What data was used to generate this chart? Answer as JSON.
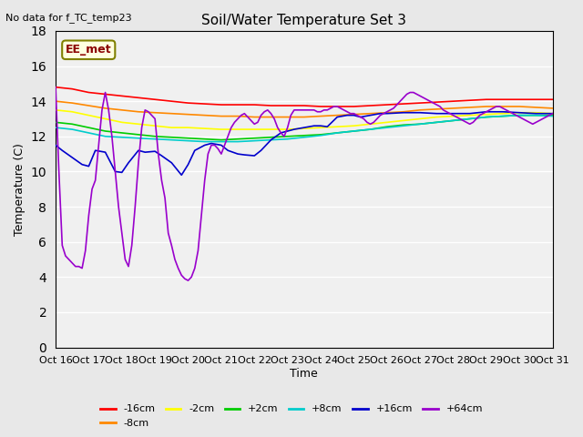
{
  "title": "Soil/Water Temperature Set 3",
  "no_data_label": "No data for f_TC_temp23",
  "xlabel": "Time",
  "ylabel": "Temperature (C)",
  "ylim": [
    0,
    18
  ],
  "yticks": [
    0,
    2,
    4,
    6,
    8,
    10,
    12,
    14,
    16,
    18
  ],
  "x_labels": [
    "Oct 16",
    "Oct 17",
    "Oct 18",
    "Oct 19",
    "Oct 20",
    "Oct 21",
    "Oct 22",
    "Oct 23",
    "Oct 24",
    "Oct 25",
    "Oct 26",
    "Oct 27",
    "Oct 28",
    "Oct 29",
    "Oct 30",
    "Oct 31"
  ],
  "x_ticks": [
    0,
    1,
    2,
    3,
    4,
    5,
    6,
    7,
    8,
    9,
    10,
    11,
    12,
    13,
    14,
    15
  ],
  "legend_label": "EE_met",
  "series": {
    "-16cm": {
      "color": "#ff0000",
      "data_x": [
        0,
        0.5,
        1,
        1.5,
        2,
        2.5,
        3,
        3.5,
        4,
        4.5,
        5,
        5.5,
        6,
        6.5,
        7,
        7.5,
        8,
        8.5,
        9,
        9.5,
        10,
        10.5,
        11,
        11.5,
        12,
        12.5,
        13,
        13.5,
        14,
        14.5,
        15
      ],
      "data_y": [
        14.8,
        14.7,
        14.5,
        14.4,
        14.3,
        14.2,
        14.1,
        14.0,
        13.9,
        13.85,
        13.8,
        13.8,
        13.8,
        13.75,
        13.75,
        13.75,
        13.7,
        13.7,
        13.7,
        13.75,
        13.8,
        13.85,
        13.9,
        13.95,
        14.0,
        14.05,
        14.1,
        14.1,
        14.1,
        14.1,
        14.1
      ]
    },
    "-8cm": {
      "color": "#ff8800",
      "data_x": [
        0,
        0.5,
        1,
        1.5,
        2,
        2.5,
        3,
        3.5,
        4,
        4.5,
        5,
        5.5,
        6,
        6.5,
        7,
        7.5,
        8,
        8.5,
        9,
        9.5,
        10,
        10.5,
        11,
        11.5,
        12,
        12.5,
        13,
        13.5,
        14,
        14.5,
        15
      ],
      "data_y": [
        14.0,
        13.9,
        13.75,
        13.6,
        13.5,
        13.4,
        13.35,
        13.3,
        13.25,
        13.2,
        13.15,
        13.15,
        13.1,
        13.1,
        13.1,
        13.1,
        13.15,
        13.2,
        13.25,
        13.3,
        13.35,
        13.4,
        13.5,
        13.55,
        13.6,
        13.65,
        13.7,
        13.7,
        13.7,
        13.65,
        13.6
      ]
    },
    "-2cm": {
      "color": "#ffff00",
      "data_x": [
        0,
        0.5,
        1,
        1.5,
        2,
        2.5,
        3,
        3.5,
        4,
        4.5,
        5,
        5.5,
        6,
        6.5,
        7,
        7.5,
        8,
        8.5,
        9,
        9.5,
        10,
        10.5,
        11,
        11.5,
        12,
        12.5,
        13,
        13.5,
        14,
        14.5,
        15
      ],
      "data_y": [
        13.5,
        13.4,
        13.2,
        13.0,
        12.8,
        12.7,
        12.6,
        12.5,
        12.5,
        12.45,
        12.4,
        12.4,
        12.4,
        12.4,
        12.4,
        12.45,
        12.5,
        12.55,
        12.6,
        12.7,
        12.8,
        12.9,
        13.0,
        13.1,
        13.15,
        13.2,
        13.25,
        13.3,
        13.35,
        13.35,
        13.3
      ]
    },
    "+2cm": {
      "color": "#00cc00",
      "data_x": [
        0,
        0.5,
        1,
        1.5,
        2,
        2.5,
        3,
        3.5,
        4,
        4.5,
        5,
        5.5,
        6,
        6.5,
        7,
        7.5,
        8,
        8.5,
        9,
        9.5,
        10,
        10.5,
        11,
        11.5,
        12,
        12.5,
        13,
        13.5,
        14,
        14.5,
        15
      ],
      "data_y": [
        12.8,
        12.7,
        12.5,
        12.3,
        12.2,
        12.1,
        12.0,
        11.95,
        11.9,
        11.85,
        11.8,
        11.85,
        11.9,
        11.95,
        12.0,
        12.05,
        12.1,
        12.2,
        12.3,
        12.4,
        12.55,
        12.65,
        12.7,
        12.8,
        12.9,
        13.0,
        13.1,
        13.15,
        13.2,
        13.2,
        13.2
      ]
    },
    "+8cm": {
      "color": "#00cccc",
      "data_x": [
        0,
        0.5,
        1,
        1.5,
        2,
        2.5,
        3,
        3.5,
        4,
        4.5,
        5,
        5.5,
        6,
        6.5,
        7,
        7.5,
        8,
        8.5,
        9,
        9.5,
        10,
        10.5,
        11,
        11.5,
        12,
        12.5,
        13,
        13.5,
        14,
        14.5,
        15
      ],
      "data_y": [
        12.5,
        12.4,
        12.2,
        12.0,
        11.95,
        11.9,
        11.85,
        11.8,
        11.75,
        11.7,
        11.7,
        11.7,
        11.75,
        11.8,
        11.85,
        11.95,
        12.05,
        12.2,
        12.3,
        12.4,
        12.5,
        12.6,
        12.7,
        12.8,
        12.9,
        13.0,
        13.1,
        13.15,
        13.2,
        13.2,
        13.15
      ]
    },
    "+16cm": {
      "color": "#0000cc",
      "data_x": [
        0,
        0.2,
        0.5,
        0.8,
        1.0,
        1.2,
        1.5,
        1.8,
        2.0,
        2.2,
        2.5,
        2.7,
        3.0,
        3.2,
        3.5,
        3.8,
        4.0,
        4.2,
        4.5,
        4.7,
        5.0,
        5.2,
        5.5,
        5.7,
        6.0,
        6.2,
        6.5,
        6.8,
        7.0,
        7.2,
        7.5,
        7.8,
        8.0,
        8.2,
        8.5,
        8.8,
        9.0,
        9.2,
        9.5,
        9.8,
        10,
        10.5,
        11,
        11.5,
        12,
        12.5,
        13,
        13.5,
        14,
        14.5,
        15
      ],
      "data_y": [
        11.5,
        11.2,
        10.8,
        10.4,
        10.3,
        11.2,
        11.1,
        10.0,
        9.95,
        10.5,
        11.2,
        11.1,
        11.15,
        10.9,
        10.5,
        9.8,
        10.4,
        11.2,
        11.5,
        11.6,
        11.5,
        11.2,
        11.0,
        10.95,
        10.9,
        11.2,
        11.8,
        12.2,
        12.3,
        12.4,
        12.5,
        12.6,
        12.6,
        12.55,
        13.1,
        13.2,
        13.2,
        13.1,
        13.2,
        13.3,
        13.3,
        13.35,
        13.35,
        13.3,
        13.3,
        13.3,
        13.4,
        13.4,
        13.35,
        13.3,
        13.3
      ]
    },
    "+64cm": {
      "color": "#9900cc",
      "data_x": [
        0,
        0.1,
        0.2,
        0.3,
        0.4,
        0.5,
        0.6,
        0.7,
        0.8,
        0.9,
        1.0,
        1.1,
        1.2,
        1.3,
        1.4,
        1.5,
        1.6,
        1.7,
        1.8,
        1.9,
        2.0,
        2.1,
        2.2,
        2.3,
        2.4,
        2.5,
        2.6,
        2.7,
        2.8,
        2.9,
        3.0,
        3.1,
        3.2,
        3.3,
        3.4,
        3.5,
        3.6,
        3.7,
        3.8,
        3.9,
        4.0,
        4.1,
        4.2,
        4.3,
        4.4,
        4.5,
        4.6,
        4.7,
        4.8,
        4.9,
        5.0,
        5.1,
        5.2,
        5.3,
        5.4,
        5.5,
        5.6,
        5.7,
        5.8,
        5.9,
        6.0,
        6.1,
        6.2,
        6.3,
        6.4,
        6.5,
        6.6,
        6.7,
        6.8,
        6.9,
        7.0,
        7.1,
        7.2,
        7.3,
        7.4,
        7.5,
        7.6,
        7.7,
        7.8,
        7.9,
        8.0,
        8.1,
        8.2,
        8.3,
        8.4,
        8.5,
        8.6,
        8.7,
        8.8,
        8.9,
        9.0,
        9.1,
        9.2,
        9.3,
        9.4,
        9.5,
        9.6,
        9.7,
        9.8,
        9.9,
        10.0,
        10.1,
        10.2,
        10.3,
        10.4,
        10.5,
        10.6,
        10.7,
        10.8,
        10.9,
        11.0,
        11.1,
        11.2,
        11.3,
        11.4,
        11.5,
        11.6,
        11.7,
        11.8,
        11.9,
        12.0,
        12.1,
        12.2,
        12.3,
        12.4,
        12.5,
        12.6,
        12.7,
        12.8,
        12.9,
        13.0,
        13.1,
        13.2,
        13.3,
        13.4,
        13.5,
        13.6,
        13.7,
        13.8,
        13.9,
        14.0,
        14.1,
        14.2,
        14.3,
        14.4,
        14.5,
        14.6,
        14.7,
        14.8,
        14.9,
        15.0
      ],
      "data_y": [
        14.8,
        10.0,
        5.8,
        5.2,
        5.0,
        4.8,
        4.6,
        4.6,
        4.5,
        5.5,
        7.5,
        9.0,
        9.5,
        11.5,
        13.5,
        14.5,
        13.5,
        12.0,
        10.0,
        8.0,
        6.5,
        5.0,
        4.6,
        5.8,
        8.0,
        10.5,
        12.5,
        13.5,
        13.4,
        13.2,
        13.0,
        11.0,
        9.5,
        8.5,
        6.5,
        5.8,
        5.0,
        4.5,
        4.1,
        3.9,
        3.8,
        4.0,
        4.5,
        5.5,
        7.5,
        9.5,
        11.0,
        11.5,
        11.5,
        11.3,
        11.0,
        11.5,
        12.0,
        12.5,
        12.8,
        13.0,
        13.2,
        13.3,
        13.1,
        12.9,
        12.7,
        12.8,
        13.2,
        13.4,
        13.5,
        13.3,
        13.0,
        12.5,
        12.2,
        12.0,
        12.5,
        13.2,
        13.5,
        13.5,
        13.5,
        13.5,
        13.5,
        13.5,
        13.5,
        13.4,
        13.4,
        13.5,
        13.5,
        13.6,
        13.7,
        13.7,
        13.6,
        13.5,
        13.4,
        13.3,
        13.3,
        13.2,
        13.1,
        13.0,
        12.8,
        12.7,
        12.8,
        13.0,
        13.2,
        13.3,
        13.4,
        13.5,
        13.6,
        13.8,
        14.0,
        14.2,
        14.4,
        14.5,
        14.5,
        14.4,
        14.3,
        14.2,
        14.1,
        14.0,
        13.9,
        13.8,
        13.7,
        13.5,
        13.4,
        13.3,
        13.2,
        13.1,
        13.0,
        12.9,
        12.8,
        12.7,
        12.8,
        13.0,
        13.2,
        13.3,
        13.4,
        13.5,
        13.6,
        13.7,
        13.7,
        13.6,
        13.5,
        13.4,
        13.3,
        13.2,
        13.1,
        13.0,
        12.9,
        12.8,
        12.7,
        12.8,
        12.9,
        13.0,
        13.1,
        13.2,
        13.3
      ]
    }
  },
  "bg_color": "#e8e8e8",
  "plot_bg": "#f0f0f0",
  "grid_color": "#ffffff"
}
